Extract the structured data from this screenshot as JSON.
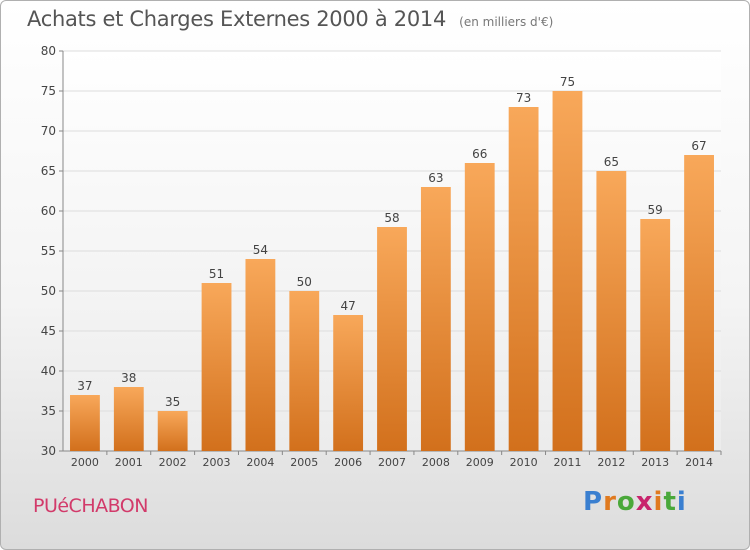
{
  "header": {
    "title": "Achats et Charges Externes 2000 à 2014",
    "subtitle": "(en milliers d'€)"
  },
  "footer": {
    "commune": "PUéCHABON",
    "logo": {
      "letters": [
        "P",
        "r",
        "o",
        "x",
        "i",
        "t",
        "i"
      ],
      "colors": [
        "#3a7fd0",
        "#e07a1f",
        "#4aa83a",
        "#c8246d",
        "#e07a1f",
        "#4aa83a",
        "#3a7fd0"
      ]
    }
  },
  "chart_data": {
    "type": "bar",
    "categories": [
      "2000",
      "2001",
      "2002",
      "2003",
      "2004",
      "2005",
      "2006",
      "2007",
      "2008",
      "2009",
      "2010",
      "2011",
      "2012",
      "2013",
      "2014"
    ],
    "values": [
      37,
      38,
      35,
      51,
      54,
      50,
      47,
      58,
      63,
      66,
      73,
      75,
      65,
      59,
      67
    ],
    "ylim": [
      30,
      80
    ],
    "yticks": [
      30,
      35,
      40,
      45,
      50,
      55,
      60,
      65,
      70,
      75,
      80
    ],
    "grid": true,
    "colors": {
      "bar_light": "#f8a85a",
      "bar_dark": "#d2701c",
      "grid": "#dddddd",
      "axis": "#888888",
      "label": "#444444"
    }
  }
}
